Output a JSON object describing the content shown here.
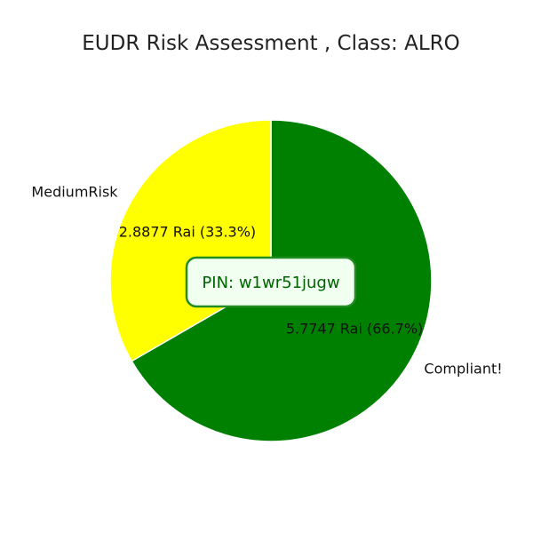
{
  "chart_data": {
    "type": "pie",
    "title": "EUDR Risk Assessment , Class: ALRO",
    "slices": [
      {
        "name": "Compliant!",
        "value": 5.7747,
        "value_label": "5.7747 Rai (66.7%)",
        "color": "#008000"
      },
      {
        "name": "MediumRisk",
        "value": 2.8877,
        "value_label": "2.8877 Rai (33.3%)",
        "color": "#ffff00"
      }
    ],
    "start": "top",
    "direction": "clockwise"
  },
  "pin_box": {
    "text": "PIN: w1wr51jugw",
    "border_color": "#228b22",
    "fill_color": "#f0fff0",
    "text_color": "#006400"
  }
}
